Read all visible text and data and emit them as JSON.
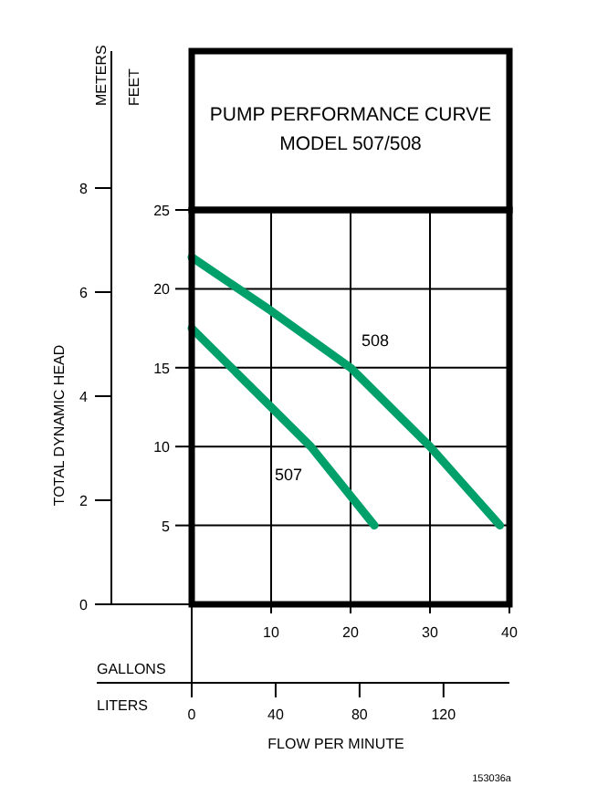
{
  "chart_data": {
    "type": "line",
    "title": "PUMP PERFORMANCE CURVE",
    "subtitle": "MODEL 507/508",
    "xlabel": "GALLONS",
    "x2label": "LITERS",
    "annotations": [
      "TOTAL DYNAMIC HEAD",
      "FLOW PER MINUTE",
      "153036a",
      "FEET",
      "METERS"
    ],
    "xlim": [
      0,
      40
    ],
    "xticks": [
      {
        "value": 0,
        "label": null
      },
      10,
      20,
      30,
      40
    ],
    "x2lim": [
      0,
      151.4
    ],
    "x2ticks": [
      0,
      40,
      80,
      120
    ],
    "ylim": [
      0,
      25
    ],
    "yticks": [
      5,
      10,
      15,
      20,
      25
    ],
    "y2lim": [
      0,
      8
    ],
    "y2ticks": [
      0,
      2,
      4,
      6,
      8
    ],
    "grid": true,
    "marker": "none",
    "line_style": "solid",
    "series": [
      {
        "name": "508",
        "color": "#00a06a",
        "x": [
          0,
          10,
          20,
          30,
          38.8
        ],
        "values": [
          22,
          18.6,
          15,
          10,
          5
        ]
      },
      {
        "name": "507",
        "color": "#00a06a",
        "x": [
          0,
          10,
          15,
          23
        ],
        "values": [
          17.5,
          12.5,
          10,
          5
        ]
      }
    ]
  }
}
